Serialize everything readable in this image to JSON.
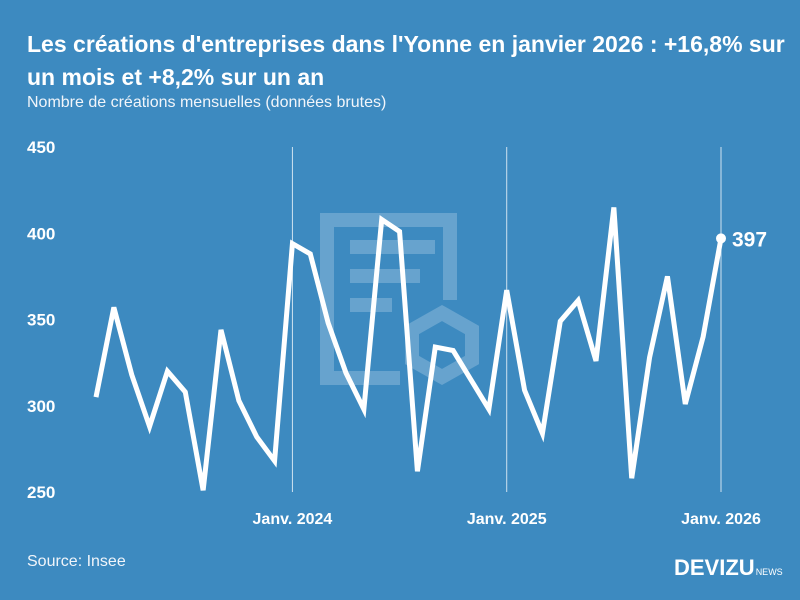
{
  "title": "Les créations d'entreprises dans l'Yonne en janvier 2026 : +16,8% sur un mois et +8,2% sur un an",
  "subtitle": "Nombre de créations mensuelles (données brutes)",
  "source": "Source: Insee",
  "logo": {
    "main": "DEVIZU",
    "suffix": "NEWS"
  },
  "colors": {
    "background": "#3d8ac0",
    "line": "#ffffff"
  },
  "chart_data": {
    "type": "line",
    "title": "Les créations d'entreprises dans l'Yonne en janvier 2026 : +16,8% sur un mois et +8,2% sur un an",
    "ylabel": "Nombre de créations mensuelles (données brutes)",
    "ylim": [
      250,
      450
    ],
    "yticks": [
      "450",
      "400",
      "350",
      "300",
      "250"
    ],
    "xticks": [
      "Janv. 2024",
      "Janv. 2025",
      "Janv. 2026"
    ],
    "grid": "vertical lines at January",
    "x": [
      "2023-02",
      "2023-03",
      "2023-04",
      "2023-05",
      "2023-06",
      "2023-07",
      "2023-08",
      "2023-09",
      "2023-10",
      "2023-11",
      "2023-12",
      "2024-01",
      "2024-02",
      "2024-03",
      "2024-04",
      "2024-05",
      "2024-06",
      "2024-07",
      "2024-08",
      "2024-09",
      "2024-10",
      "2024-11",
      "2024-12",
      "2025-01",
      "2025-02",
      "2025-03",
      "2025-04",
      "2025-05",
      "2025-06",
      "2025-07",
      "2025-08",
      "2025-09",
      "2025-10",
      "2025-11",
      "2025-12",
      "2026-01"
    ],
    "values": [
      305,
      357,
      318,
      288,
      320,
      308,
      251,
      344,
      303,
      282,
      268,
      394,
      388,
      348,
      319,
      298,
      408,
      401,
      262,
      334,
      332,
      315,
      298,
      367,
      309,
      284,
      349,
      361,
      326,
      415,
      258,
      328,
      375,
      301,
      340,
      397
    ],
    "annotation": "397"
  }
}
